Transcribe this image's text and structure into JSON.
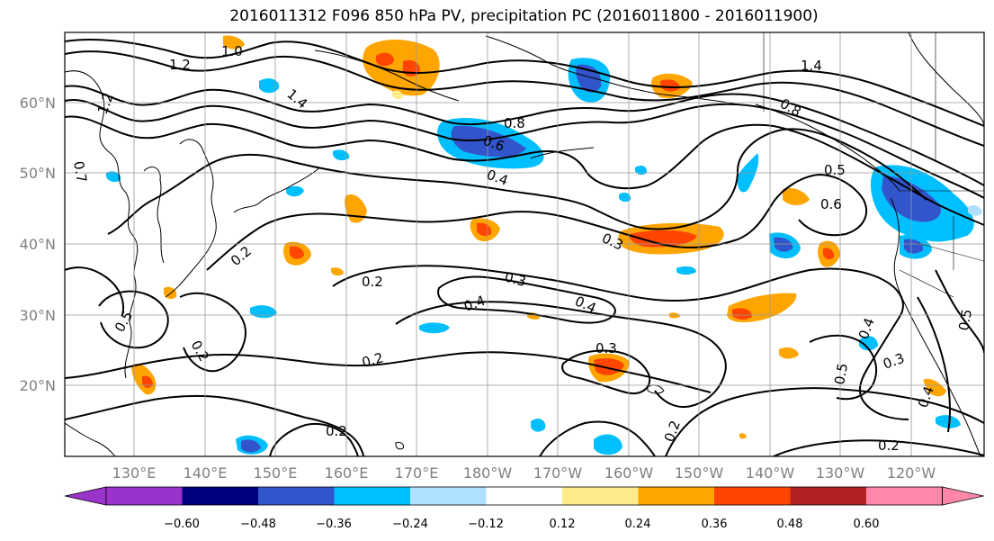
{
  "title": "2016011312 F096 850 hPa PV, precipitation PC (2016011800 - 2016011900)",
  "lon_labels": [
    "130°E",
    "140°E",
    "150°E",
    "160°E",
    "170°E",
    "180°W",
    "170°W",
    "160°W",
    "150°W",
    "140°W",
    "130°W",
    "120°W"
  ],
  "lat_labels": [
    "60°N",
    "50°N",
    "40°N",
    "30°N",
    "20°N"
  ],
  "colorbar": {
    "ticks": [
      "−0.60",
      "−0.48",
      "−0.36",
      "−0.24",
      "−0.12",
      "0.12",
      "0.24",
      "0.36",
      "0.48",
      "0.60"
    ],
    "colors": [
      "#9933cc",
      "#000080",
      "#3355cc",
      "#00bfff",
      "#b0e0ff",
      "#ffffff",
      "#ffeb8a",
      "#ffa500",
      "#ff4500",
      "#b22222",
      "#ff88aa"
    ]
  },
  "contour_labels": [
    "1.2",
    "1.0",
    "1.2",
    "0.7",
    "1.4",
    "0.8",
    "0.6",
    "0.4",
    "1.4",
    "0.8",
    "0.5",
    "0.6",
    "0.3",
    "0.2",
    "0.2",
    "0.3",
    "0.4",
    "0.4",
    "0.3",
    "0.2",
    "0.2",
    "0.2",
    "0.5",
    "0.4",
    "0.5",
    "0.3",
    "0.2",
    "0.4",
    "0.2",
    "0.5"
  ]
}
